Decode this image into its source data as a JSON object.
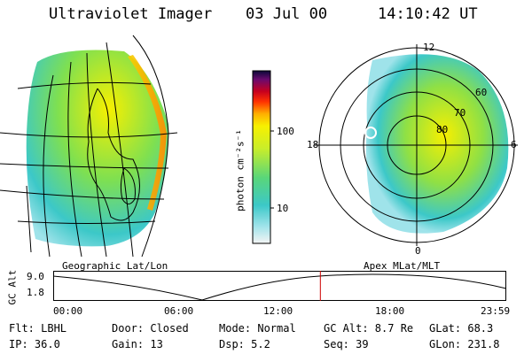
{
  "header": {
    "instrument": "Ultraviolet Imager",
    "date": "03 Jul 00",
    "time": "14:10:42 UT"
  },
  "colorbar": {
    "unit_label": "photon cm⁻²s⁻¹",
    "ticks": [
      "100",
      "10"
    ]
  },
  "polar_plot": {
    "mlt_labels": {
      "top": "12",
      "left": "18",
      "right": "6",
      "bottom": "0"
    },
    "lat_labels": [
      "60",
      "70",
      "80"
    ]
  },
  "panel_labels": {
    "left": "Geographic Lat/Lon",
    "right": "Apex MLat/MLT"
  },
  "altitude_strip": {
    "axis_label": "GC Alt",
    "y_ticks": [
      "9.0",
      "1.8"
    ],
    "x_ticks": [
      "00:00",
      "06:00",
      "12:00",
      "18:00",
      "23:59"
    ],
    "current_marker_fraction": 0.59,
    "colors": {
      "curve": "#000000",
      "marker": "#cc0000"
    }
  },
  "footer": {
    "filter": "Flt: LBHL",
    "ip": "IP: 36.0",
    "door": "Door: Closed",
    "gain": "Gain: 13",
    "mode": "Mode: Normal",
    "dsp": "Dsp:    5.2",
    "gc_alt": "GC Alt: 8.7 Re",
    "seq": "Seq: 39",
    "glat": "GLat:  68.3",
    "glon": "GLon: 231.8"
  }
}
